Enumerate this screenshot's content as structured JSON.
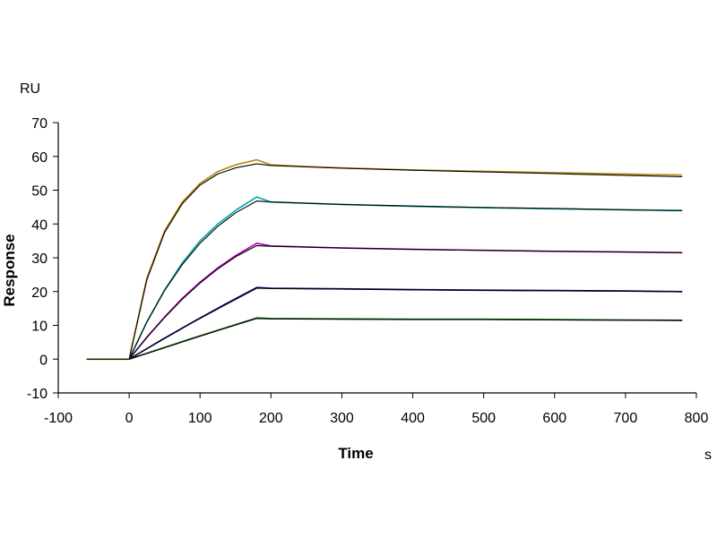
{
  "chart_data": {
    "type": "line",
    "xlabel": "Time",
    "ylabel": "Response",
    "x_unit": "s",
    "y_unit": "RU",
    "xlim": [
      -100,
      800
    ],
    "ylim": [
      -10,
      70
    ],
    "x_ticks": [
      -100,
      0,
      100,
      200,
      300,
      400,
      500,
      600,
      700,
      800
    ],
    "y_ticks": [
      -10,
      0,
      10,
      20,
      30,
      40,
      50,
      60,
      70
    ],
    "grid": false,
    "series": [
      {
        "color": "#b8860b",
        "x": [
          -60,
          0,
          25,
          50,
          75,
          100,
          125,
          150,
          180,
          200,
          250,
          300,
          400,
          500,
          600,
          700,
          780
        ],
        "y": [
          0,
          0,
          24,
          38,
          46.5,
          52,
          55.5,
          57.5,
          59,
          57.5,
          57,
          56.6,
          56,
          55.6,
          55.2,
          54.8,
          54.5
        ]
      },
      {
        "color": "#000000",
        "x": [
          -60,
          0,
          25,
          50,
          75,
          100,
          125,
          150,
          180,
          200,
          250,
          300,
          400,
          500,
          600,
          700,
          780
        ],
        "y": [
          0,
          0,
          23.5,
          37.5,
          46,
          51.5,
          54.8,
          56.6,
          57.8,
          57.3,
          56.9,
          56.5,
          55.9,
          55.4,
          54.9,
          54.4,
          54
        ]
      },
      {
        "color": "#00a5a5",
        "x": [
          0,
          25,
          50,
          75,
          100,
          125,
          150,
          180,
          200,
          300,
          400,
          500,
          600,
          700,
          780
        ],
        "y": [
          0,
          11,
          20.5,
          28.5,
          35,
          40,
          44,
          48,
          46.5,
          45.8,
          45.2,
          44.8,
          44.5,
          44.2,
          44
        ]
      },
      {
        "color": "#000000",
        "x": [
          0,
          25,
          50,
          75,
          100,
          125,
          150,
          180,
          200,
          300,
          400,
          500,
          600,
          700,
          780
        ],
        "y": [
          0,
          11,
          20.3,
          28,
          34.3,
          39.3,
          43.3,
          46.8,
          46.5,
          45.8,
          45.3,
          44.9,
          44.6,
          44.2,
          43.9
        ]
      },
      {
        "color": "#b000b0",
        "x": [
          0,
          25,
          50,
          75,
          100,
          125,
          150,
          180,
          200,
          300,
          400,
          500,
          600,
          700,
          780
        ],
        "y": [
          0,
          6.5,
          12.5,
          18,
          22.8,
          27,
          30.6,
          34.3,
          33.5,
          32.9,
          32.5,
          32.2,
          31.9,
          31.7,
          31.5
        ]
      },
      {
        "color": "#000000",
        "x": [
          0,
          25,
          50,
          75,
          100,
          125,
          150,
          180,
          200,
          300,
          400,
          500,
          600,
          700,
          780
        ],
        "y": [
          0,
          6.4,
          12.3,
          17.7,
          22.5,
          26.7,
          30.3,
          33.6,
          33.4,
          32.9,
          32.5,
          32.2,
          31.9,
          31.7,
          31.5
        ]
      },
      {
        "color": "#00008b",
        "x": [
          0,
          45,
          90,
          135,
          180,
          200,
          300,
          400,
          500,
          600,
          700,
          780
        ],
        "y": [
          0,
          5.6,
          11,
          16.2,
          21.2,
          21,
          20.8,
          20.6,
          20.4,
          20.3,
          20.2,
          20
        ]
      },
      {
        "color": "#000000",
        "x": [
          0,
          45,
          90,
          135,
          180,
          200,
          300,
          400,
          500,
          600,
          700,
          780
        ],
        "y": [
          0,
          5.5,
          10.9,
          16,
          21,
          20.9,
          20.7,
          20.5,
          20.3,
          20.2,
          20.1,
          19.9
        ]
      },
      {
        "color": "#006400",
        "x": [
          0,
          45,
          90,
          135,
          180,
          200,
          300,
          400,
          500,
          600,
          700,
          780
        ],
        "y": [
          0,
          3.1,
          6.2,
          9.2,
          12.2,
          12,
          11.9,
          11.8,
          11.8,
          11.7,
          11.6,
          11.5
        ]
      },
      {
        "color": "#000000",
        "x": [
          0,
          45,
          90,
          135,
          180,
          200,
          300,
          400,
          500,
          600,
          700,
          780
        ],
        "y": [
          0,
          3,
          6.1,
          9.1,
          12,
          11.9,
          11.8,
          11.7,
          11.7,
          11.6,
          11.5,
          11.4
        ]
      }
    ]
  }
}
